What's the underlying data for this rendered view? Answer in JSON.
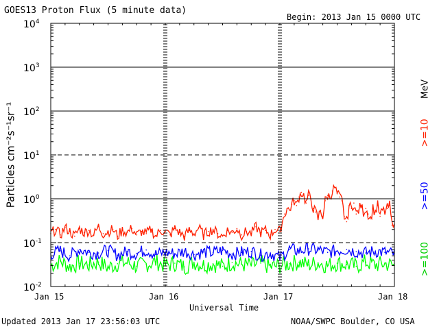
{
  "chart_data": {
    "type": "line",
    "title": "GOES13 Proton Flux (5 minute data)",
    "begin_label": "Begin: 2013 Jan 15 0000 UTC",
    "ylabel": "Particles cm⁻²s⁻¹sr⁻¹",
    "xlabel": "Universal Time",
    "unit_label": "MeV",
    "yscale": "log",
    "ylim": [
      0.01,
      10000
    ],
    "xlim": [
      0,
      72
    ],
    "y_ticks": [
      {
        "value": 10000,
        "base": "10",
        "exp": "4"
      },
      {
        "value": 1000,
        "base": "10",
        "exp": "3"
      },
      {
        "value": 100,
        "base": "10",
        "exp": "2"
      },
      {
        "value": 10,
        "base": "10",
        "exp": "1"
      },
      {
        "value": 1,
        "base": "10",
        "exp": "0"
      },
      {
        "value": 0.1,
        "base": "10",
        "exp": "-1"
      },
      {
        "value": 0.01,
        "base": "10",
        "exp": "-2"
      }
    ],
    "x_ticks": [
      {
        "hour": 0,
        "label": "Jan 15"
      },
      {
        "hour": 24,
        "label": "Jan 16"
      },
      {
        "hour": 48,
        "label": "Jan 17"
      },
      {
        "hour": 72,
        "label": "Jan 18"
      }
    ],
    "threshold_lines": [
      {
        "value": 10,
        "style": "dashed"
      },
      {
        "value": 0.1,
        "style": "dashed"
      }
    ],
    "series": [
      {
        "name": ">=10",
        "color": "#ff2000",
        "x": [
          0,
          1,
          2,
          3,
          4,
          5,
          6,
          7,
          8,
          9,
          10,
          11,
          12,
          13,
          14,
          15,
          16,
          17,
          18,
          19,
          20,
          21,
          22,
          23,
          24,
          25,
          26,
          27,
          28,
          29,
          30,
          31,
          32,
          33,
          34,
          35,
          36,
          37,
          38,
          39,
          40,
          41,
          42,
          43,
          44,
          45,
          46,
          47,
          48,
          48.5,
          49,
          49.5,
          50,
          50.5,
          51,
          51.5,
          52,
          52.5,
          53,
          53.5,
          54,
          54.5,
          55,
          55.5,
          56,
          56.5,
          57,
          57.5,
          58,
          58.5,
          59,
          59.5,
          60,
          60.5,
          61,
          61.5,
          62,
          62.5,
          63,
          63.5,
          64,
          64.5,
          65,
          65.5,
          66,
          66.5,
          67,
          67.5,
          68,
          68.5,
          69,
          69.5,
          70,
          70.5,
          71,
          71.5,
          72
        ],
        "values": [
          0.16,
          0.2,
          0.15,
          0.22,
          0.18,
          0.14,
          0.21,
          0.17,
          0.19,
          0.15,
          0.23,
          0.16,
          0.18,
          0.2,
          0.14,
          0.19,
          0.17,
          0.21,
          0.15,
          0.18,
          0.16,
          0.2,
          0.14,
          0.19,
          0.18,
          0.15,
          0.21,
          0.17,
          0.14,
          0.19,
          0.16,
          0.22,
          0.15,
          0.18,
          0.2,
          0.16,
          0.14,
          0.19,
          0.17,
          0.21,
          0.15,
          0.18,
          0.16,
          0.23,
          0.17,
          0.19,
          0.15,
          0.2,
          0.18,
          0.3,
          0.45,
          0.6,
          0.55,
          0.75,
          0.9,
          0.7,
          1.1,
          1.4,
          1.2,
          0.8,
          1.2,
          1.0,
          0.6,
          0.5,
          0.35,
          0.55,
          0.4,
          0.9,
          1.2,
          1.1,
          1.5,
          1.8,
          1.3,
          1.1,
          0.9,
          0.4,
          0.3,
          0.7,
          0.6,
          0.8,
          0.45,
          0.55,
          0.7,
          0.5,
          0.6,
          0.45,
          0.35,
          0.6,
          0.5,
          0.7,
          0.4,
          0.55,
          0.5,
          0.6,
          0.7,
          0.25,
          0.35
        ]
      },
      {
        "name": ">=50",
        "color": "#0000ff",
        "x": [
          0,
          2,
          4,
          6,
          8,
          10,
          12,
          14,
          16,
          18,
          20,
          22,
          24,
          26,
          28,
          30,
          32,
          34,
          36,
          38,
          40,
          42,
          44,
          46,
          48,
          50,
          52,
          54,
          56,
          58,
          60,
          62,
          64,
          66,
          68,
          70,
          72
        ],
        "values": [
          0.055,
          0.065,
          0.05,
          0.07,
          0.06,
          0.058,
          0.066,
          0.052,
          0.062,
          0.057,
          0.068,
          0.054,
          0.06,
          0.056,
          0.064,
          0.053,
          0.061,
          0.059,
          0.067,
          0.055,
          0.06,
          0.063,
          0.052,
          0.058,
          0.045,
          0.07,
          0.065,
          0.072,
          0.068,
          0.06,
          0.066,
          0.07,
          0.062,
          0.058,
          0.064,
          0.06,
          0.055
        ]
      },
      {
        "name": ">=100",
        "color": "#00ff00",
        "x": [
          0,
          2,
          4,
          6,
          8,
          10,
          12,
          14,
          16,
          18,
          20,
          22,
          24,
          26,
          28,
          30,
          32,
          34,
          36,
          38,
          40,
          42,
          44,
          46,
          48,
          50,
          52,
          54,
          56,
          58,
          60,
          62,
          64,
          66,
          68,
          70,
          72
        ],
        "values": [
          0.03,
          0.038,
          0.028,
          0.034,
          0.031,
          0.036,
          0.027,
          0.033,
          0.035,
          0.029,
          0.032,
          0.037,
          0.03,
          0.034,
          0.028,
          0.036,
          0.031,
          0.033,
          0.029,
          0.035,
          0.032,
          0.03,
          0.034,
          0.028,
          0.03,
          0.033,
          0.036,
          0.031,
          0.035,
          0.03,
          0.034,
          0.032,
          0.029,
          0.036,
          0.031,
          0.033,
          0.03
        ]
      }
    ]
  },
  "footer": {
    "updated": "Updated 2013 Jan 17 23:56:03 UTC",
    "credit": "NOAA/SWPC Boulder, CO USA"
  }
}
